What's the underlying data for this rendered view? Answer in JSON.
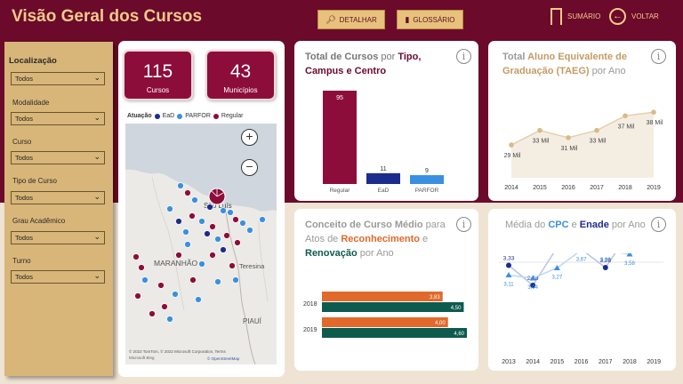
{
  "header": {
    "title": "Visão Geral dos Cursos",
    "btn_detalhar": "DETALHAR",
    "btn_glossario": "GLOSSÁRIO",
    "nav_sumario": "SUMÁRIO",
    "nav_voltar": "VOLTAR"
  },
  "filters": {
    "heading": "Localização",
    "items": [
      {
        "label": "",
        "value": "Todos"
      },
      {
        "label": "Modalidade",
        "value": "Todos"
      },
      {
        "label": "Curso",
        "value": "Todos"
      },
      {
        "label": "Tipo de Curso",
        "value": "Todos"
      },
      {
        "label": "Grau Acadêmico",
        "value": "Todos"
      },
      {
        "label": "Turno",
        "value": "Todos"
      }
    ]
  },
  "kpis": {
    "cursos": {
      "value": "115",
      "label": "Cursos"
    },
    "municipios": {
      "value": "43",
      "label": "Municípios"
    }
  },
  "map": {
    "legend_title": "Atuação",
    "legend_items": [
      {
        "label": "EaD",
        "color": "#1c2c8c"
      },
      {
        "label": "PARFOR",
        "color": "#3b8fe0"
      },
      {
        "label": "Regular",
        "color": "#8d0d3a"
      }
    ],
    "labels": {
      "sao_luis": "São Luís",
      "maranhao": "MARANHÃO",
      "teresina": "Teresina",
      "piaui": "PIAUÍ"
    },
    "attribution": "© 2022 TomTom, © 2022 Microsoft Corporation,  Terms",
    "attribution2": "© OpenStreetMap",
    "bing": "Microsoft Bing",
    "zoom_in": "+",
    "zoom_out": "−"
  },
  "total_cursos": {
    "title_parts": [
      "Total de Cursos ",
      "por ",
      "Tipo,",
      "Campus e Centro"
    ],
    "chart_data": {
      "type": "bar",
      "categories": [
        "Regular",
        "EaD",
        "PARFOR"
      ],
      "values": [
        95,
        11,
        9
      ],
      "colors": [
        "#8d0d3a",
        "#1c2c8c",
        "#3b8fe0"
      ]
    }
  },
  "taeg": {
    "title_parts": [
      "Total ",
      "Aluno Equivalente de Graduação (TAEG)",
      " por Ano"
    ],
    "chart_data": {
      "type": "area",
      "x": [
        2014,
        2015,
        2016,
        2017,
        2018,
        2019
      ],
      "values": [
        29,
        33,
        31,
        33,
        37,
        38
      ],
      "labels": [
        "29 Mil",
        "33 Mil",
        "31 Mil",
        "33 Mil",
        "37 Mil",
        "38 Mil"
      ],
      "color": "#d9b98a"
    }
  },
  "conceito": {
    "title_parts": [
      "Conceito de Curso Médio",
      " para Atos de ",
      "Reconhecimento",
      " e ",
      "Renovação",
      " por Ano"
    ],
    "chart_data": {
      "type": "bar",
      "categories": [
        "2018",
        "2019"
      ],
      "series": [
        {
          "name": "Reconhecimento",
          "values": [
            3.83,
            4.0
          ],
          "labels": [
            "3,83",
            "4,00"
          ],
          "color": "#e2692c"
        },
        {
          "name": "Renovação",
          "values": [
            4.5,
            4.6
          ],
          "labels": [
            "4,50",
            "4,60"
          ],
          "color": "#0d5a4e"
        }
      ]
    }
  },
  "cpc": {
    "title_parts": [
      "Média",
      " do ",
      "CPC",
      " e ",
      "Enade",
      " por Ano"
    ],
    "chart_data": {
      "type": "line",
      "x": [
        2013,
        2014,
        2015,
        2016,
        2017,
        2018,
        2019
      ],
      "series": [
        {
          "name": "CPC",
          "values": [
            3.33,
            2.88,
            3.73,
            3.69,
            3.28,
            4.08,
            3.81
          ],
          "labels": [
            "3,33",
            "2,88",
            "3,73",
            "3,69",
            "3,28",
            "4,08",
            "3,81"
          ],
          "color": "#1c2c8c"
        },
        {
          "name": "Enade",
          "values": [
            3.11,
            3.04,
            3.27,
            3.67,
            3.66,
            3.58,
            3.9
          ],
          "labels": [
            "3,11",
            "3,04",
            "3,27",
            "3,67",
            "3,66",
            "3,58",
            "3,90"
          ],
          "color": "#3b8fe0"
        }
      ]
    }
  }
}
